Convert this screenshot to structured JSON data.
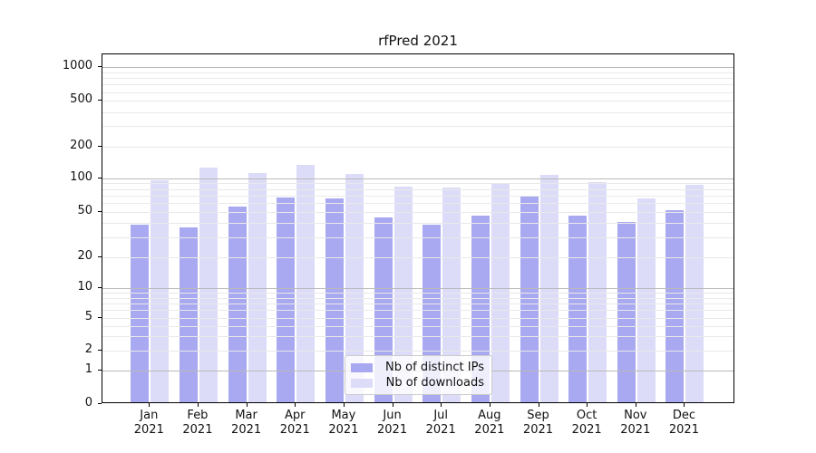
{
  "chart_data": {
    "type": "bar",
    "title": "rfPred 2021",
    "yscale": "symlog",
    "grid": true,
    "legend_position": "lower center",
    "categories": [
      "Jan 2021",
      "Feb 2021",
      "Mar 2021",
      "Apr 2021",
      "May 2021",
      "Jun 2021",
      "Jul 2021",
      "Aug 2021",
      "Sep 2021",
      "Oct 2021",
      "Nov 2021",
      "Dec 2021"
    ],
    "series": [
      {
        "name": "Nb of distinct IPs",
        "color": "#a9a9f1",
        "values": [
          39,
          37,
          56,
          68,
          66,
          45,
          39,
          47,
          69,
          47,
          41,
          52
        ]
      },
      {
        "name": "Nb of downloads",
        "color": "#dcdcf8",
        "values": [
          95,
          126,
          113,
          133,
          110,
          84,
          82,
          90,
          107,
          93,
          66,
          87
        ]
      }
    ],
    "y_ticks": [
      0,
      1,
      2,
      5,
      10,
      20,
      50,
      100,
      200,
      500,
      1000
    ],
    "y_major_gridlines": [
      1,
      10,
      100,
      1000
    ],
    "y_minor_gridlines": [
      2,
      3,
      4,
      5,
      6,
      7,
      8,
      9,
      20,
      30,
      40,
      50,
      60,
      70,
      80,
      90,
      200,
      300,
      400,
      500,
      600,
      700,
      800,
      900
    ],
    "ylim": [
      0,
      1300
    ],
    "colors": {
      "major_grid": "#b9b9b9",
      "minor_grid": "#e9e9e9",
      "spine": "#000000",
      "text": "#111111"
    }
  }
}
